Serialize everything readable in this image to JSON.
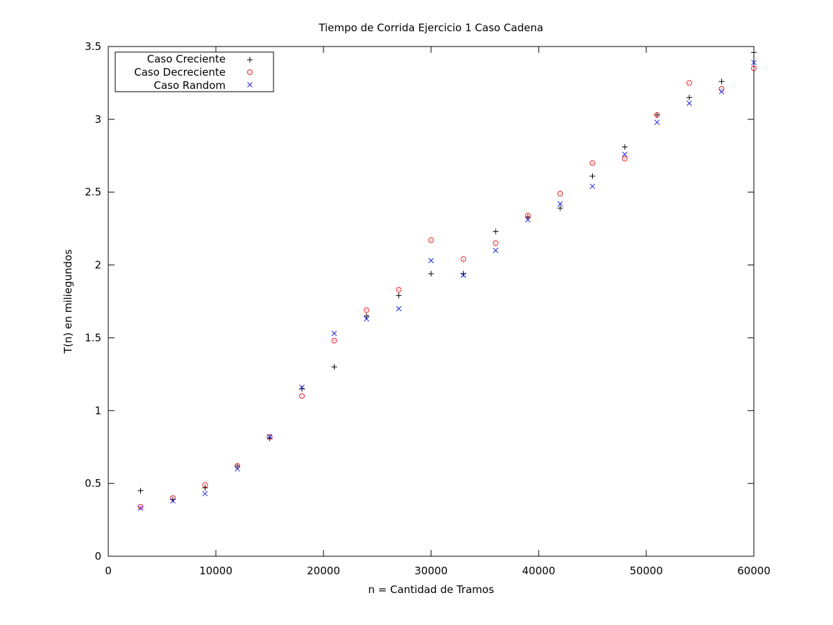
{
  "chart_data": {
    "type": "scatter",
    "title": "Tiempo de Corrida Ejercicio 1 Caso Cadena",
    "xlabel": "n = Cantidad de Tramos",
    "ylabel": "T(n) en miliegundos",
    "xlim": [
      0,
      60000
    ],
    "ylim": [
      0,
      3.5
    ],
    "xticks": [
      0,
      10000,
      20000,
      30000,
      40000,
      50000,
      60000
    ],
    "yticks": [
      0,
      0.5,
      1,
      1.5,
      2,
      2.5,
      3,
      3.5
    ],
    "xtick_labels": [
      "0",
      "10000",
      "20000",
      "30000",
      "40000",
      "50000",
      "60000"
    ],
    "ytick_labels": [
      "0",
      "0.5",
      "1",
      "1.5",
      "2",
      "2.5",
      "3",
      "3.5"
    ],
    "grid": false,
    "legend_position": "top-left",
    "x": [
      3000,
      6000,
      9000,
      12000,
      15000,
      18000,
      21000,
      24000,
      27000,
      30000,
      33000,
      36000,
      39000,
      42000,
      45000,
      48000,
      51000,
      54000,
      57000,
      60000
    ],
    "series": [
      {
        "name": "Caso Creciente",
        "marker": "plus",
        "color": "#000000",
        "values": [
          0.45,
          0.39,
          0.47,
          0.62,
          0.81,
          1.15,
          1.3,
          1.65,
          1.79,
          1.94,
          1.94,
          2.23,
          2.33,
          2.39,
          2.61,
          2.81,
          3.03,
          3.15,
          3.26,
          3.46
        ]
      },
      {
        "name": "Caso Decreciente",
        "marker": "circle-dot",
        "color": "#e8202a",
        "values": [
          0.34,
          0.4,
          0.49,
          0.62,
          0.82,
          1.1,
          1.48,
          1.69,
          1.83,
          2.17,
          2.04,
          2.15,
          2.34,
          2.49,
          2.7,
          2.73,
          3.03,
          3.25,
          3.21,
          3.35
        ]
      },
      {
        "name": "Caso Random",
        "marker": "cross",
        "color": "#1c1cd8",
        "values": [
          0.33,
          0.38,
          0.43,
          0.6,
          0.82,
          1.16,
          1.53,
          1.63,
          1.7,
          2.03,
          1.93,
          2.1,
          2.31,
          2.42,
          2.54,
          2.76,
          2.98,
          3.11,
          3.19,
          3.39
        ]
      }
    ]
  }
}
